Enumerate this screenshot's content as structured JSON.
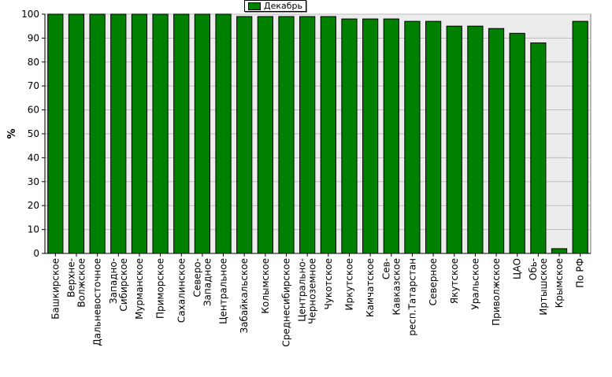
{
  "chart_data": {
    "type": "bar",
    "title": "",
    "xlabel": "",
    "ylabel": "%",
    "ylim": [
      0,
      100
    ],
    "yticks": [
      0,
      10,
      20,
      30,
      40,
      50,
      60,
      70,
      80,
      90,
      100
    ],
    "grid": true,
    "legend_position": "top-center",
    "colors": {
      "bar": "#008000",
      "bar_edge": "#000000",
      "plot_bg": "#ececec"
    },
    "categories": [
      [
        "Башкирское"
      ],
      [
        "Верхне-",
        "Волжское"
      ],
      [
        "Дальневосточное"
      ],
      [
        "Западно-",
        "Сибирское"
      ],
      [
        "Мурманское"
      ],
      [
        "Приморское"
      ],
      [
        "Сахалинское"
      ],
      [
        "Северо-",
        "Западное"
      ],
      [
        "Центральное"
      ],
      [
        "Забайкальское"
      ],
      [
        "Колымское"
      ],
      [
        "Среднесибирское"
      ],
      [
        "Центрально-",
        "Черноземное"
      ],
      [
        "Чукотское"
      ],
      [
        "Иркутское"
      ],
      [
        "Камчатское"
      ],
      [
        "Сев-",
        "Кавказское"
      ],
      [
        "респ.Татарстан"
      ],
      [
        "Северное"
      ],
      [
        "Якутское"
      ],
      [
        "Уральское"
      ],
      [
        "Приволжское"
      ],
      [
        "ЦАО"
      ],
      [
        "Обь-",
        "Иртышское"
      ],
      [
        "Крымское"
      ],
      [
        "По РФ"
      ]
    ],
    "series": [
      {
        "name": "Декабрь",
        "values": [
          100,
          100,
          100,
          100,
          100,
          100,
          100,
          100,
          100,
          99,
          99,
          99,
          99,
          99,
          98,
          98,
          98,
          97,
          97,
          95,
          95,
          94,
          92,
          88,
          2,
          97
        ]
      }
    ]
  }
}
